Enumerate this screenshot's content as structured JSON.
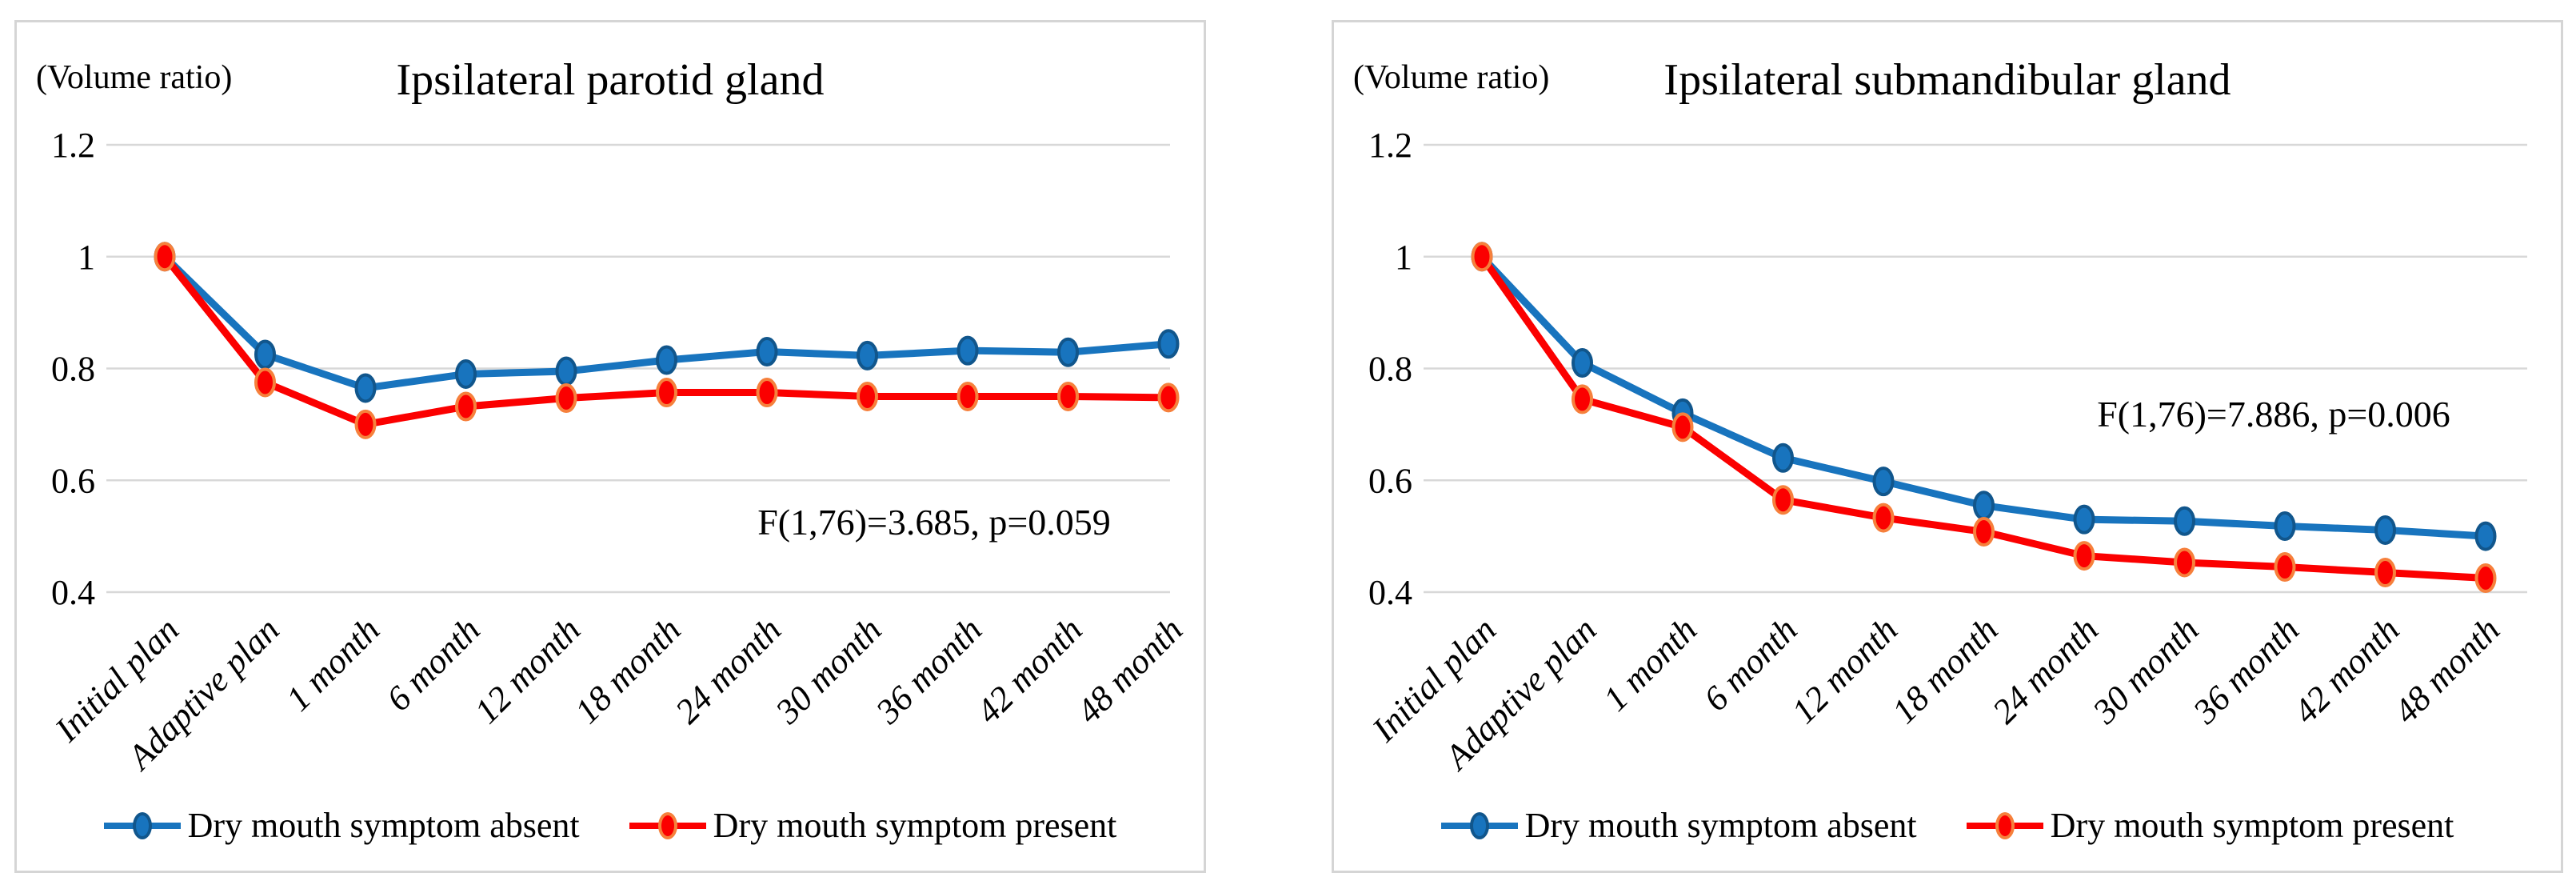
{
  "figure": {
    "volume_ratio_label": "(Volume ratio)",
    "colors": {
      "series_absent": "#1874BE",
      "series_absent_marker_stroke": "#11568C",
      "series_present": "#FB0000",
      "series_present_marker_stroke": "#F6803C",
      "gridline": "#D8D8D8",
      "panel_border": "#D5D5D5",
      "text": "#000000"
    }
  },
  "chart_data": [
    {
      "type": "line",
      "title": "Ipsilateral parotid gland",
      "ylabel": "(Volume ratio)",
      "annotation": "F(1,76)=3.685, p=0.059",
      "annotation_x": 1147,
      "annotation_y": 625,
      "categories": [
        "Initial plan",
        "Adaptive plan",
        "1 month",
        "6 month",
        "12 month",
        "18 month",
        "24 month",
        "30 month",
        "36 month",
        "42 month",
        "48 month"
      ],
      "yticks": [
        1.2,
        1,
        0.8,
        0.6,
        0.4
      ],
      "ytick_labels": [
        "1.2",
        "1",
        "0.8",
        "0.6",
        "0.4"
      ],
      "ylim": [
        0.4,
        1.2
      ],
      "grid": true,
      "legend_position": "bottom",
      "series": [
        {
          "name": "Dry mouth symptom absent",
          "color": "#1874BE",
          "marker_stroke": "#11568C",
          "values": [
            1.0,
            0.825,
            0.765,
            0.79,
            0.795,
            0.815,
            0.83,
            0.823,
            0.832,
            0.829,
            0.844
          ]
        },
        {
          "name": "Dry mouth symptom present",
          "color": "#FB0000",
          "marker_stroke": "#F6803C",
          "values": [
            1.0,
            0.775,
            0.7,
            0.732,
            0.747,
            0.757,
            0.757,
            0.75,
            0.75,
            0.75,
            0.748
          ]
        }
      ]
    },
    {
      "type": "line",
      "title": "Ipsilateral submandibular gland",
      "ylabel": "(Volume ratio)",
      "annotation": "F(1,76)=7.886, p=0.006",
      "annotation_x": 1175,
      "annotation_y": 490,
      "categories": [
        "Initial plan",
        "Adaptive plan",
        "1 month",
        "6 month",
        "12 month",
        "18 month",
        "24 month",
        "30 month",
        "36 month",
        "42 month",
        "48 month"
      ],
      "yticks": [
        1.2,
        1,
        0.8,
        0.6,
        0.4
      ],
      "ytick_labels": [
        "1.2",
        "1",
        "0.8",
        "0.6",
        "0.4"
      ],
      "ylim": [
        0.4,
        1.2
      ],
      "grid": true,
      "legend_position": "bottom",
      "series": [
        {
          "name": "Dry mouth symptom absent",
          "color": "#1874BE",
          "marker_stroke": "#11568C",
          "values": [
            1.0,
            0.81,
            0.72,
            0.64,
            0.598,
            0.555,
            0.53,
            0.527,
            0.518,
            0.511,
            0.5
          ]
        },
        {
          "name": "Dry mouth symptom present",
          "color": "#FB0000",
          "marker_stroke": "#F6803C",
          "values": [
            1.0,
            0.745,
            0.695,
            0.565,
            0.533,
            0.508,
            0.465,
            0.453,
            0.445,
            0.435,
            0.425
          ]
        }
      ]
    }
  ]
}
